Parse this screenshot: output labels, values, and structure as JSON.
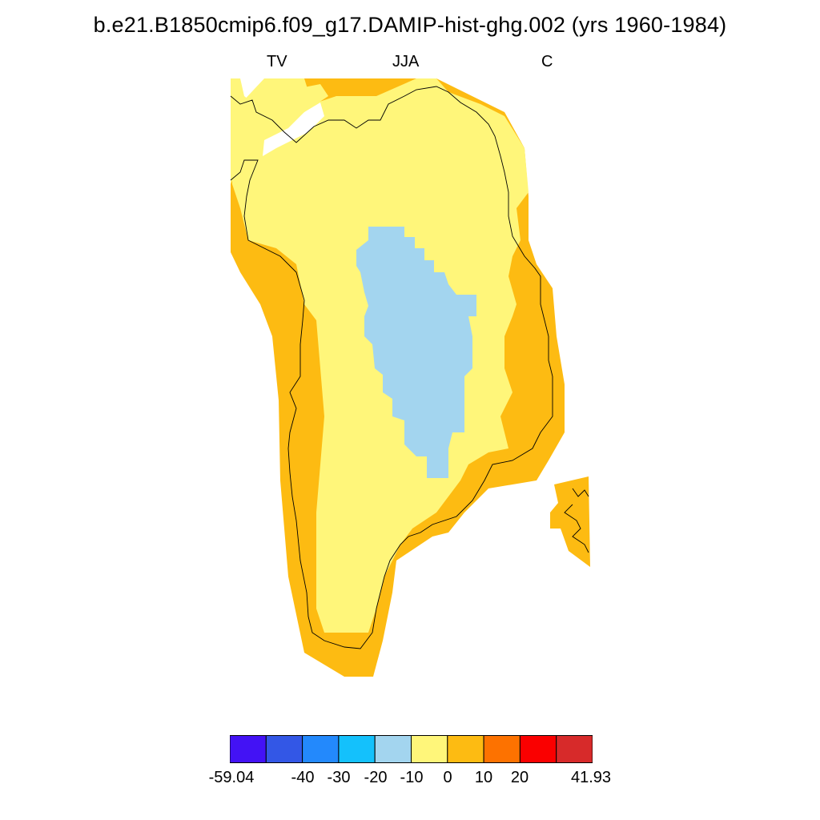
{
  "title": "b.e21.B1850cmip6.f09_g17.DAMIP-hist-ghg.002 (yrs 1960-1984)",
  "subtitle_left": "TV",
  "subtitle_center": "JJA",
  "subtitle_right": "C",
  "colors": {
    "light_blue": "#a3d5ef",
    "light_yellow": "#fff67a",
    "orange_yellow": "#fdbb12",
    "coastline": "#000000"
  },
  "legend": {
    "colors": [
      "#4312f5",
      "#3357e6",
      "#2389fc",
      "#14c1fc",
      "#a3d5ef",
      "#fff67a",
      "#fdbb12",
      "#fd7200",
      "#fa0000",
      "#d72a2a"
    ],
    "labels": [
      "-59.04",
      "-40",
      "-30",
      "-20",
      "-10",
      "0",
      "10",
      "20",
      "41.93"
    ]
  }
}
